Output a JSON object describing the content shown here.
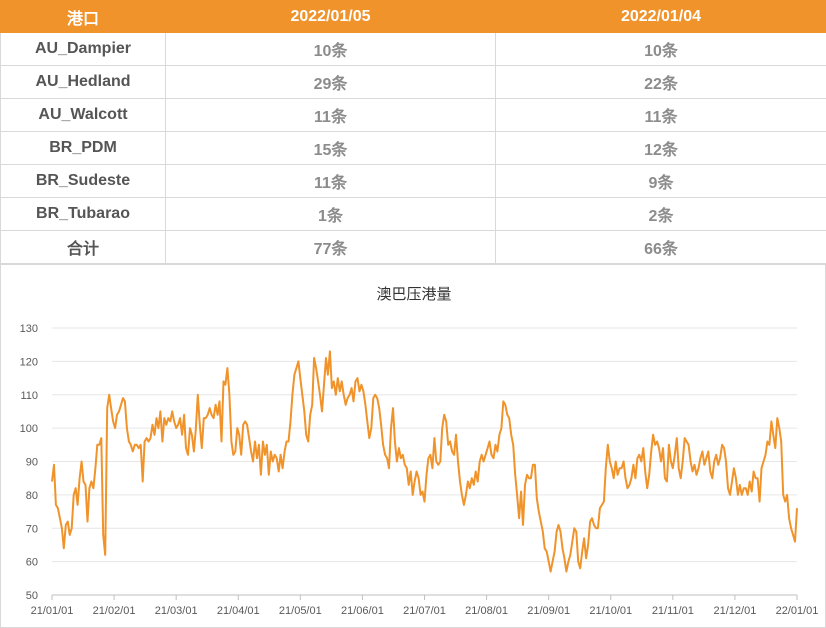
{
  "table": {
    "headers": [
      "港口",
      "2022/01/05",
      "2022/01/04"
    ],
    "rows": [
      {
        "port": "AU_Dampier",
        "v1": "10条",
        "v2": "10条"
      },
      {
        "port": "AU_Hedland",
        "v1": "29条",
        "v2": "22条"
      },
      {
        "port": "AU_Walcott",
        "v1": "11条",
        "v2": "11条"
      },
      {
        "port": "BR_PDM",
        "v1": "15条",
        "v2": "12条"
      },
      {
        "port": "BR_Sudeste",
        "v1": "11条",
        "v2": "9条"
      },
      {
        "port": "BR_Tubarao",
        "v1": "1条",
        "v2": "2条"
      },
      {
        "port": "合计",
        "v1": "77条",
        "v2": "66条"
      }
    ]
  },
  "colors": {
    "header_bg": "#f0932b",
    "line": "#f0932b",
    "grid": "#e6e6e6"
  },
  "chart_data": {
    "type": "line",
    "title": "澳巴压港量",
    "xlabel": "",
    "ylabel": "",
    "ylim": [
      50,
      130
    ],
    "yticks": [
      50,
      60,
      70,
      80,
      90,
      100,
      110,
      120,
      130
    ],
    "xticks": [
      "21/01/01",
      "21/02/01",
      "21/03/01",
      "21/04/01",
      "21/05/01",
      "21/06/01",
      "21/07/01",
      "21/08/01",
      "21/09/01",
      "21/10/01",
      "21/11/01",
      "21/12/01",
      "22/01/01"
    ],
    "grid": true,
    "series": [
      {
        "name": "",
        "values": [
          84,
          89,
          77,
          76,
          73,
          70,
          64,
          71,
          72,
          68,
          70,
          80,
          82,
          77,
          85,
          90,
          84,
          83,
          72,
          82,
          84,
          82,
          88,
          95,
          95,
          97,
          68,
          62,
          106,
          110,
          106,
          102,
          100,
          104,
          105,
          107,
          109,
          108,
          100,
          96,
          95,
          93,
          95,
          95,
          94,
          95,
          84,
          96,
          97,
          96,
          97,
          101,
          98,
          103,
          100,
          105,
          96,
          103,
          101,
          103,
          102,
          105,
          102,
          100,
          101,
          103,
          98,
          104,
          94,
          92,
          100,
          98,
          93,
          100,
          110,
          101,
          94,
          103,
          103,
          104,
          106,
          104,
          103,
          107,
          104,
          108,
          96,
          114,
          113,
          118,
          110,
          96,
          92,
          93,
          100,
          98,
          92,
          101,
          102,
          101,
          97,
          93,
          90,
          96,
          91,
          95,
          86,
          96,
          92,
          95,
          86,
          93,
          90,
          92,
          91,
          87,
          92,
          88,
          93,
          96,
          96,
          102,
          110,
          116,
          118,
          120,
          115,
          110,
          105,
          98,
          96,
          104,
          107,
          121,
          118,
          114,
          110,
          105,
          113,
          121,
          116,
          123,
          112,
          114,
          110,
          115,
          111,
          114,
          110,
          107,
          109,
          110,
          112,
          108,
          114,
          115,
          111,
          113,
          111,
          107,
          102,
          97,
          100,
          109,
          110,
          109,
          106,
          101,
          95,
          92,
          91,
          88,
          100,
          106,
          96,
          90,
          94,
          91,
          92,
          89,
          88,
          83,
          87,
          80,
          84,
          87,
          85,
          80,
          81,
          78,
          86,
          91,
          92,
          88,
          97,
          90,
          89,
          90,
          100,
          104,
          102,
          95,
          96,
          93,
          92,
          98,
          90,
          84,
          80,
          77,
          80,
          84,
          82,
          85,
          83,
          87,
          84,
          90,
          92,
          90,
          92,
          94,
          96,
          92,
          91,
          95,
          93,
          98,
          100,
          108,
          107,
          104,
          103,
          98,
          95,
          86,
          80,
          73,
          81,
          71,
          83,
          86,
          85,
          85,
          89,
          89,
          79,
          75,
          72,
          69,
          64,
          63,
          60,
          57,
          60,
          63,
          69,
          71,
          69,
          64,
          61,
          57,
          60,
          62,
          66,
          70,
          69,
          60,
          58,
          63,
          67,
          61,
          65,
          72,
          73,
          71,
          70,
          70,
          76,
          77,
          78,
          88,
          95,
          90,
          88,
          85,
          90,
          86,
          88,
          88,
          90,
          85,
          82,
          83,
          85,
          89,
          85,
          91,
          92,
          90,
          94,
          87,
          82,
          86,
          93,
          98,
          95,
          96,
          94,
          90,
          94,
          85,
          84,
          95,
          90,
          88,
          92,
          97,
          88,
          85,
          90,
          97,
          96,
          95,
          90,
          87,
          89,
          86,
          88,
          91,
          93,
          89,
          91,
          93,
          87,
          85,
          90,
          92,
          89,
          91,
          95,
          94,
          90,
          82,
          80,
          84,
          88,
          85,
          80,
          83,
          80,
          82,
          82,
          80,
          84,
          81,
          87,
          85,
          85,
          78,
          88,
          90,
          92,
          96,
          95,
          102,
          98,
          94,
          103,
          100,
          96,
          80,
          78,
          80,
          73,
          70,
          68,
          66,
          76
        ]
      }
    ]
  }
}
